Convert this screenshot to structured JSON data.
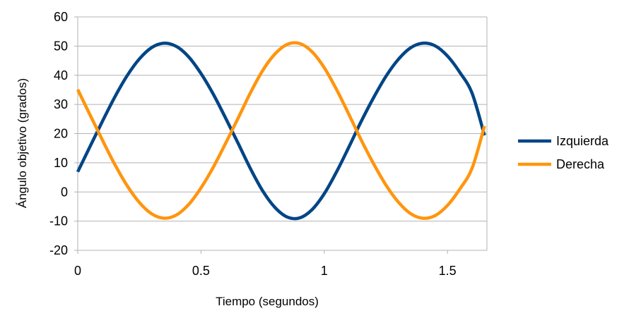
{
  "chart_data": {
    "type": "line",
    "title": "",
    "xlabel": "Tiempo (segundos)",
    "ylabel": "Ángulo objetivo (grados)",
    "xlim": [
      0,
      1.66
    ],
    "ylim": [
      -20,
      60
    ],
    "xticks": [
      0,
      0.5,
      1,
      1.5
    ],
    "xtick_labels": [
      "0",
      "0.5",
      "1",
      "1.5"
    ],
    "yticks": [
      -20,
      -10,
      0,
      10,
      20,
      30,
      40,
      50,
      60
    ],
    "ytick_labels": [
      "-20",
      "-10",
      "0",
      "10",
      "20",
      "30",
      "40",
      "50",
      "60"
    ],
    "grid": "horizontal",
    "legend_position": "right",
    "series": [
      {
        "name": "Izquierda",
        "color": "#004586",
        "x": [
          0,
          0.05,
          0.1,
          0.15,
          0.2,
          0.25,
          0.3,
          0.35,
          0.4,
          0.45,
          0.5,
          0.55,
          0.6,
          0.65,
          0.7,
          0.75,
          0.8,
          0.85,
          0.9,
          0.95,
          1.0,
          1.05,
          1.1,
          1.15,
          1.2,
          1.25,
          1.3,
          1.35,
          1.4,
          1.45,
          1.5,
          1.55,
          1.6,
          1.65
        ],
        "values": [
          6.9,
          15.6,
          24.2,
          32.5,
          39.8,
          45.6,
          49.5,
          51.0,
          49.9,
          46.3,
          40.6,
          33.5,
          25.3,
          16.8,
          8.1,
          0.4,
          -5.3,
          -8.6,
          -8.9,
          -6.1,
          -0.6,
          6.9,
          15.4,
          24.2,
          32.3,
          39.6,
          45.4,
          49.4,
          51.0,
          50.1,
          46.6,
          41.0,
          33.8,
          19.4
        ]
      },
      {
        "name": "Derecha",
        "color": "#ff950e",
        "x": [
          0,
          0.05,
          0.1,
          0.15,
          0.2,
          0.25,
          0.3,
          0.35,
          0.4,
          0.45,
          0.5,
          0.55,
          0.6,
          0.65,
          0.7,
          0.75,
          0.8,
          0.85,
          0.9,
          0.95,
          1.0,
          1.05,
          1.1,
          1.15,
          1.2,
          1.25,
          1.3,
          1.35,
          1.4,
          1.45,
          1.5,
          1.55,
          1.6,
          1.65
        ],
        "values": [
          35.1,
          26.4,
          17.8,
          9.5,
          2.2,
          -3.6,
          -7.5,
          -9.0,
          -7.9,
          -4.3,
          1.4,
          8.5,
          16.7,
          25.2,
          33.9,
          41.6,
          47.3,
          50.6,
          50.9,
          48.1,
          42.6,
          35.1,
          26.6,
          17.8,
          9.7,
          2.4,
          -3.4,
          -7.4,
          -9.0,
          -8.1,
          -4.6,
          1.0,
          8.2,
          22.6
        ]
      }
    ]
  }
}
